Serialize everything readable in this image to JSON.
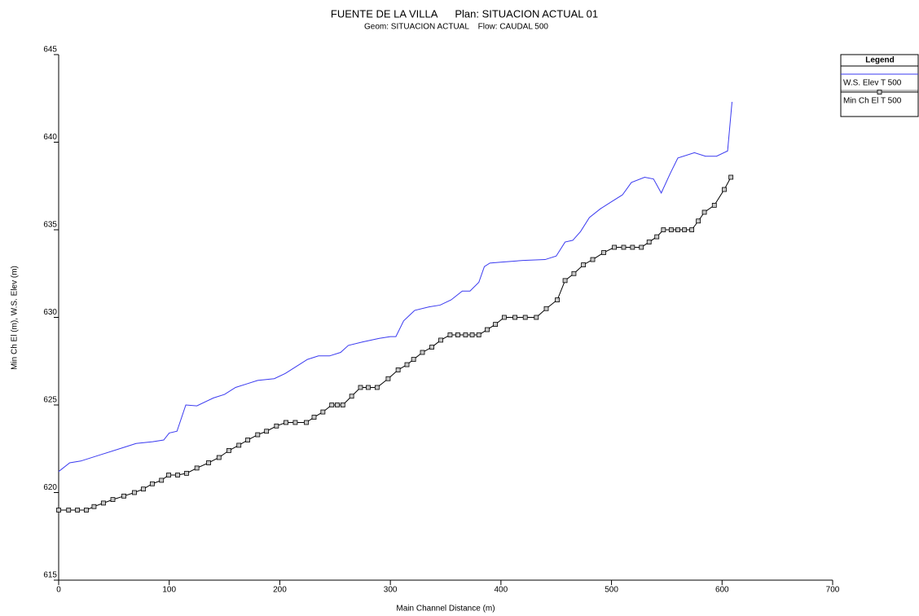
{
  "chart_data": {
    "type": "line",
    "title": "FUENTE DE LA VILLA      Plan: SITUACION ACTUAL 01",
    "subtitle": "Geom: SITUACION ACTUAL    Flow: CAUDAL 500",
    "x_label": "Main Channel Distance (m)",
    "y_label": "Min Ch El (m), W.S. Elev (m)",
    "legend_title": "Legend",
    "legend_position": "upper right",
    "xlim": [
      0,
      700
    ],
    "xticks": [
      0,
      100,
      200,
      300,
      400,
      500,
      600,
      700
    ],
    "ylim": [
      615,
      645
    ],
    "yticks": [
      615,
      620,
      625,
      630,
      635,
      640,
      645
    ],
    "series": [
      {
        "name": "W.S. Elev T 500",
        "color": "#3a3af0",
        "markers": false,
        "x": [
          0,
          10,
          20,
          40,
          60,
          70,
          85,
          95,
          100,
          107,
          115,
          125,
          140,
          150,
          160,
          170,
          180,
          195,
          205,
          215,
          225,
          235,
          245,
          255,
          262,
          275,
          290,
          300,
          305,
          312,
          322,
          335,
          345,
          355,
          365,
          372,
          380,
          385,
          390,
          400,
          420,
          440,
          450,
          458,
          465,
          472,
          480,
          490,
          500,
          510,
          518,
          530,
          538,
          545,
          553,
          560,
          575,
          585,
          595,
          605,
          609
        ],
        "values": [
          621.2,
          621.7,
          621.8,
          622.2,
          622.6,
          622.8,
          622.9,
          623.0,
          623.4,
          623.5,
          625.0,
          624.95,
          625.4,
          625.6,
          626.0,
          626.2,
          626.4,
          626.5,
          626.8,
          627.2,
          627.6,
          627.8,
          627.8,
          628.0,
          628.4,
          628.6,
          628.8,
          628.9,
          628.9,
          629.8,
          630.4,
          630.6,
          630.7,
          631.0,
          631.5,
          631.5,
          632.0,
          632.9,
          633.1,
          633.15,
          633.25,
          633.3,
          633.5,
          634.3,
          634.4,
          634.9,
          635.7,
          636.2,
          636.6,
          637.0,
          637.7,
          638.0,
          637.9,
          637.1,
          638.2,
          639.1,
          639.4,
          639.2,
          639.2,
          639.5,
          642.3
        ]
      },
      {
        "name": "Min Ch El T 500",
        "color": "#000000",
        "markers": true,
        "marker_color": "#c8c8c8",
        "x": [
          0,
          9,
          17,
          25,
          32,
          40.5,
          49,
          59,
          68.5,
          76.6,
          84.7,
          93,
          99.5,
          107.6,
          115.7,
          125,
          135.6,
          145,
          154,
          163,
          171,
          180,
          188,
          197,
          205.6,
          214,
          224,
          231,
          239,
          247,
          252,
          257,
          265,
          273,
          280,
          288,
          298,
          307,
          315,
          321,
          329,
          337.5,
          345.6,
          354,
          361,
          368,
          374,
          380,
          387.6,
          395,
          403,
          412.7,
          422,
          432,
          441,
          451,
          458,
          466,
          474.6,
          483,
          493,
          502.6,
          511,
          519,
          527,
          534,
          541,
          547,
          554,
          560,
          566,
          572.6,
          578.5,
          584,
          593,
          602,
          608
        ],
        "values": [
          619,
          619,
          619,
          619,
          619.2,
          619.4,
          619.6,
          619.8,
          620,
          620.2,
          620.5,
          620.7,
          621,
          621,
          621.1,
          621.4,
          621.7,
          622,
          622.4,
          622.7,
          623,
          623.3,
          623.5,
          623.8,
          624,
          624,
          624,
          624.3,
          624.6,
          625,
          625,
          625,
          625.5,
          626,
          626,
          626,
          626.5,
          627,
          627.3,
          627.6,
          628,
          628.3,
          628.7,
          629,
          629,
          629,
          629,
          629,
          629.3,
          629.6,
          630,
          630,
          630,
          630,
          630.5,
          631,
          632.1,
          632.5,
          633,
          633.3,
          633.7,
          634,
          634,
          634,
          634,
          634.3,
          634.6,
          635,
          635,
          635,
          635,
          635,
          635.5,
          636,
          636.4,
          637.3,
          638
        ]
      }
    ]
  }
}
